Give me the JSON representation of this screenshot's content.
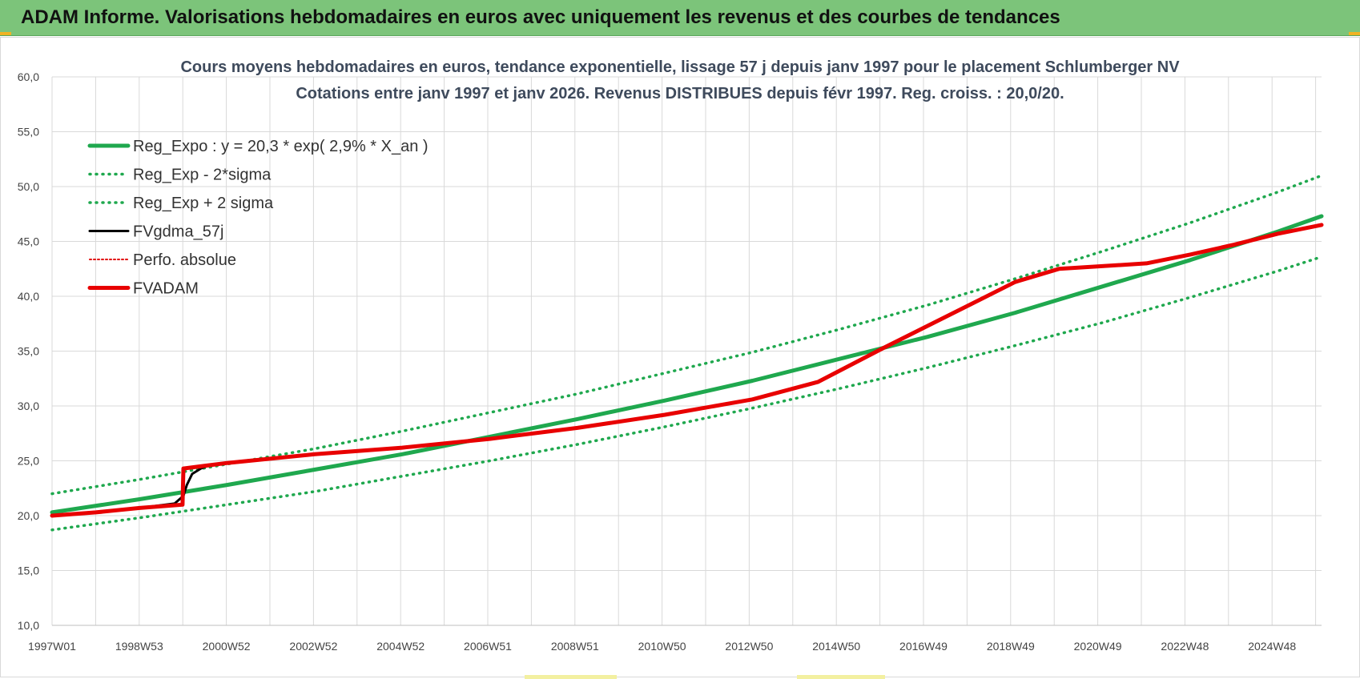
{
  "header": {
    "title": "ADAM Informe. Valorisations hebdomadaires en euros avec uniquement les revenus et des courbes de tendances"
  },
  "colors": {
    "banner": "#7cc47a",
    "trend": "#1fa84e",
    "band": "#1fa84e",
    "fvgdma": "#000000",
    "perfo": "#e00000",
    "fvadam": "#e80000",
    "grid": "#d9d9d9"
  },
  "chart_data": {
    "type": "line",
    "title": "Cours moyens hebdomadaires en euros, tendance exponentielle, lissage 57 j depuis janv 1997  pour le placement Schlumberger NV",
    "subtitle": "Cotations entre janv 1997 et janv 2026. Revenus DISTRIBUES depuis févr 1997. Reg. croiss. : 20,0/20.",
    "ylim": [
      10,
      60
    ],
    "yticks": [
      "60,0",
      "55,0",
      "50,0",
      "45,0",
      "40,0",
      "35,0",
      "30,0",
      "25,0",
      "20,0",
      "15,0",
      "10,0"
    ],
    "xlim": [
      1997.0,
      2026.0
    ],
    "xticks": [
      "1997W01",
      "1998W53",
      "2000W52",
      "2002W52",
      "2004W52",
      "2006W51",
      "2008W51",
      "2010W50",
      "2012W50",
      "2014W50",
      "2016W49",
      "2018W49",
      "2020W49",
      "2022W48",
      "2024W48"
    ],
    "grid": true,
    "legend_position": "top-left",
    "legend": [
      "Reg_Expo : y = 20,3 * exp( 2,9% *  X_an )",
      "Reg_Exp - 2*sigma",
      "Reg_Exp + 2 sigma",
      "FVgdma_57j",
      "Perfo. absolue",
      "FVADAM"
    ],
    "series": [
      {
        "name": "Reg_Expo : y = 20,3 * exp( 2,9% *  X_an )",
        "style": "solid",
        "x": [
          1997,
          1999,
          2001,
          2003,
          2005,
          2007,
          2009,
          2011,
          2013,
          2015,
          2017,
          2019,
          2021,
          2023,
          2025,
          2026
        ],
        "values": [
          20.3,
          21.5,
          22.8,
          24.2,
          25.6,
          27.2,
          28.8,
          30.5,
          32.3,
          34.3,
          36.3,
          38.5,
          40.9,
          43.3,
          45.9,
          47.3
        ]
      },
      {
        "name": "Reg_Exp - 2*sigma",
        "style": "dotted",
        "x": [
          1997,
          1999,
          2001,
          2003,
          2005,
          2007,
          2009,
          2011,
          2013,
          2015,
          2017,
          2019,
          2021,
          2023,
          2025,
          2026
        ],
        "values": [
          18.7,
          19.8,
          21.0,
          22.2,
          23.6,
          25.0,
          26.5,
          28.1,
          29.8,
          31.6,
          33.5,
          35.5,
          37.6,
          39.9,
          42.3,
          43.6
        ]
      },
      {
        "name": "Reg_Exp + 2 sigma",
        "style": "dotted",
        "x": [
          1997,
          1999,
          2001,
          2003,
          2005,
          2007,
          2009,
          2011,
          2013,
          2015,
          2017,
          2019,
          2021,
          2023,
          2025,
          2026
        ],
        "values": [
          22.0,
          23.3,
          24.7,
          26.1,
          27.7,
          29.4,
          31.1,
          33.0,
          34.9,
          37.0,
          39.2,
          41.6,
          44.1,
          46.7,
          49.5,
          51.0
        ]
      },
      {
        "name": "FVgdma_57j",
        "style": "solid",
        "x": [
          1997.0,
          1998.0,
          1999.0,
          1999.8,
          2000.0,
          2000.08,
          2000.2,
          2000.4,
          2000.6,
          2001.0,
          2003.0,
          2005.0,
          2007.0,
          2009.0,
          2011.0,
          2013.0,
          2014.5,
          2016.0,
          2017.0,
          2018.0,
          2019.0,
          2020.0,
          2022.0,
          2023.0,
          2024.0,
          2025.0,
          2026.0
        ],
        "values": [
          20.0,
          20.3,
          20.7,
          21.1,
          21.8,
          22.8,
          23.8,
          24.3,
          24.6,
          24.8,
          25.6,
          26.2,
          27.0,
          28.0,
          29.2,
          30.6,
          32.2,
          35.3,
          37.3,
          39.3,
          41.3,
          42.5,
          43.0,
          43.8,
          44.7,
          45.7,
          46.5
        ]
      },
      {
        "name": "Perfo. absolue",
        "style": "dotted",
        "x": [
          1997.0,
          1998.0,
          1999.0,
          1999.98,
          2000.0,
          2001.0,
          2003.0,
          2005.0,
          2007.0,
          2009.0,
          2011.0,
          2013.0,
          2014.5,
          2016.0,
          2017.0,
          2018.0,
          2019.0,
          2020.0,
          2022.0,
          2023.0,
          2024.0,
          2025.0,
          2026.0
        ],
        "values": [
          20.0,
          20.3,
          20.7,
          21.0,
          24.3,
          24.8,
          25.6,
          26.2,
          27.0,
          28.0,
          29.2,
          30.6,
          32.2,
          35.3,
          37.3,
          39.3,
          41.3,
          42.5,
          43.0,
          43.8,
          44.7,
          45.7,
          46.5
        ]
      },
      {
        "name": "FVADAM",
        "style": "solid",
        "x": [
          1997.0,
          1998.0,
          1999.0,
          1999.98,
          2000.0,
          2001.0,
          2003.0,
          2005.0,
          2007.0,
          2009.0,
          2011.0,
          2013.0,
          2014.5,
          2016.0,
          2017.0,
          2018.0,
          2019.0,
          2020.0,
          2022.0,
          2023.0,
          2024.0,
          2025.0,
          2026.0
        ],
        "values": [
          20.0,
          20.3,
          20.7,
          21.0,
          24.3,
          24.8,
          25.6,
          26.2,
          27.0,
          28.0,
          29.2,
          30.6,
          32.2,
          35.3,
          37.3,
          39.3,
          41.3,
          42.5,
          43.0,
          43.8,
          44.7,
          45.7,
          46.5
        ]
      }
    ]
  }
}
